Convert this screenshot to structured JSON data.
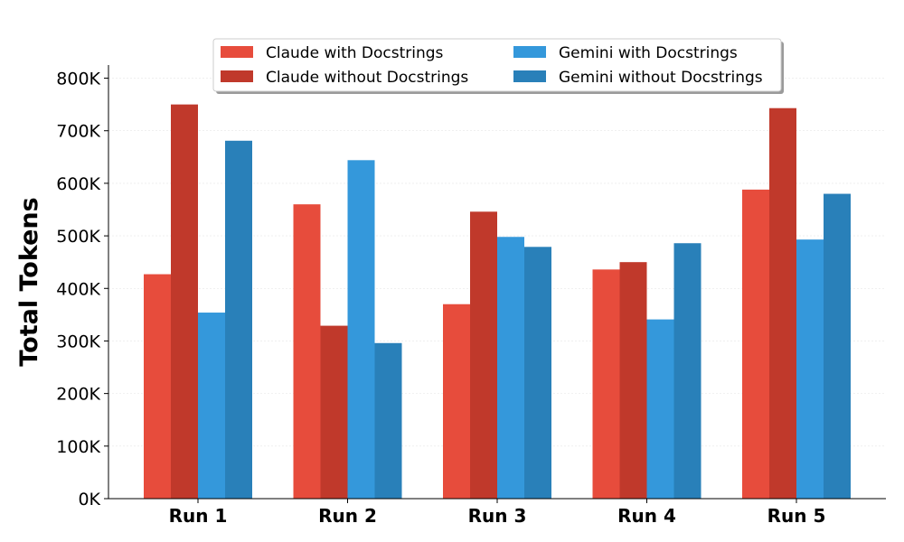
{
  "chart_data": {
    "type": "bar",
    "title": "",
    "xlabel": "",
    "ylabel": "Total Tokens",
    "categories": [
      "Run 1",
      "Run 2",
      "Run 3",
      "Run 4",
      "Run 5"
    ],
    "series": [
      {
        "name": "Claude with Docstrings",
        "color": "#e74c3c",
        "values": [
          427000,
          560000,
          370000,
          436000,
          588000
        ]
      },
      {
        "name": "Claude without Docstrings",
        "color": "#c0392b",
        "values": [
          750000,
          329000,
          546000,
          450000,
          743000
        ]
      },
      {
        "name": "Gemini with Docstrings",
        "color": "#3498db",
        "values": [
          354000,
          644000,
          498000,
          341000,
          493000
        ]
      },
      {
        "name": "Gemini without Docstrings",
        "color": "#2980b9",
        "values": [
          681000,
          296000,
          479000,
          486000,
          580000
        ]
      }
    ],
    "ylim": [
      0,
      825000
    ],
    "yticks": [
      0,
      100000,
      200000,
      300000,
      400000,
      500000,
      600000,
      700000,
      800000
    ],
    "ytick_labels": [
      "0K",
      "100K",
      "200K",
      "300K",
      "400K",
      "500K",
      "600K",
      "700K",
      "800K"
    ],
    "grid": "horizontal, faint",
    "legend_position": "top-center"
  }
}
